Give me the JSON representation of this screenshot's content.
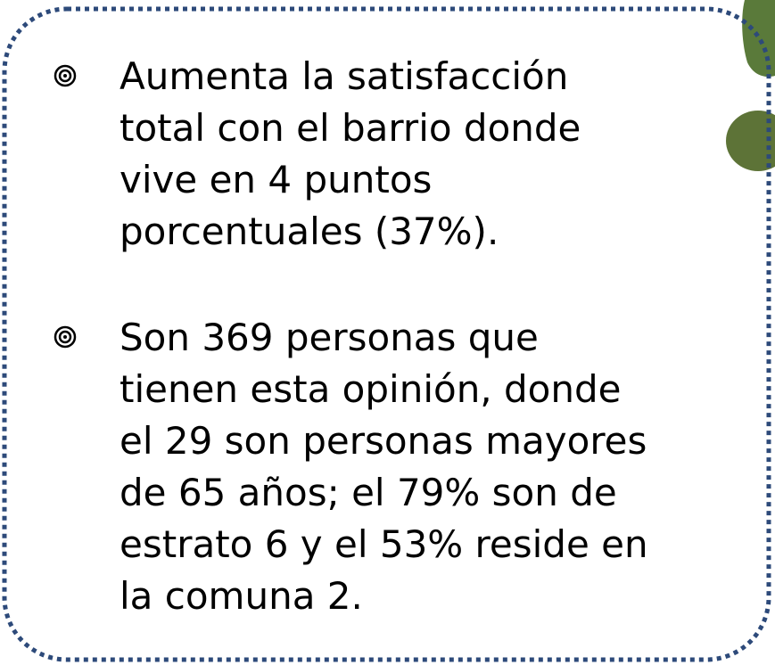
{
  "bullets": [
    {
      "lines": [
        "Aumenta la satisfacción",
        "total con el barrio donde",
        "vive en 4 puntos",
        "porcentuales (37%)."
      ]
    },
    {
      "lines": [
        "Son 369 personas que",
        "tienen esta opinión, donde",
        "el 29 son personas mayores",
        "de 65 años; el 79% son de",
        "estrato 6 y el 53% reside en",
        "la comuna 2."
      ]
    }
  ]
}
